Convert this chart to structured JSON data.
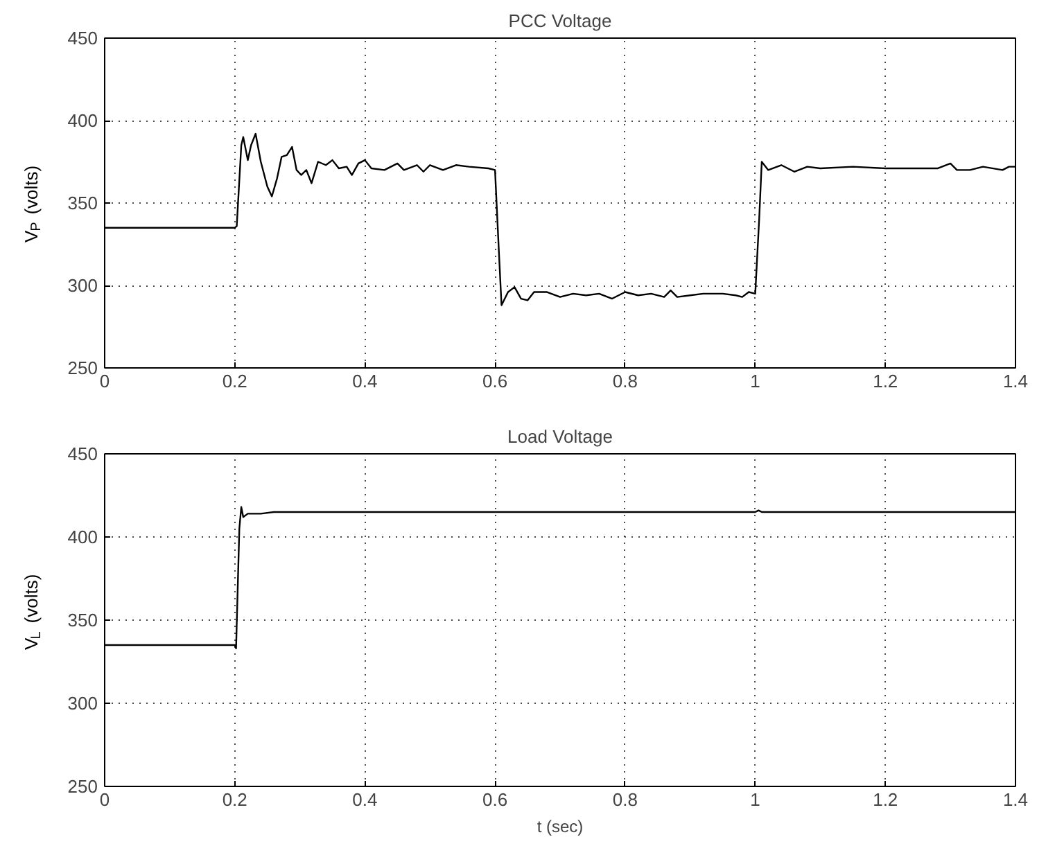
{
  "chart_data": [
    {
      "type": "line",
      "title": "PCC Voltage",
      "ylabel": "V$_{P}$ (volts)",
      "xlim": [
        0,
        1.4
      ],
      "ylim": [
        250,
        450
      ],
      "xticks": [
        0,
        0.2,
        0.4,
        0.6,
        0.8,
        1,
        1.2,
        1.4
      ],
      "yticks": [
        250,
        300,
        350,
        400,
        450
      ],
      "grid": true,
      "series": [
        {
          "color": "#000000",
          "x": [
            0,
            0.2,
            0.203,
            0.21,
            0.213,
            0.22,
            0.225,
            0.232,
            0.24,
            0.25,
            0.257,
            0.265,
            0.272,
            0.28,
            0.288,
            0.295,
            0.302,
            0.31,
            0.318,
            0.328,
            0.34,
            0.35,
            0.36,
            0.372,
            0.38,
            0.39,
            0.4,
            0.41,
            0.43,
            0.45,
            0.46,
            0.48,
            0.49,
            0.5,
            0.52,
            0.54,
            0.56,
            0.59,
            0.6,
            0.606,
            0.61,
            0.62,
            0.63,
            0.64,
            0.65,
            0.66,
            0.68,
            0.7,
            0.72,
            0.74,
            0.76,
            0.78,
            0.8,
            0.82,
            0.84,
            0.86,
            0.87,
            0.88,
            0.9,
            0.92,
            0.95,
            0.97,
            0.98,
            0.99,
            1.0,
            1.006,
            1.01,
            1.02,
            1.04,
            1.06,
            1.08,
            1.1,
            1.15,
            1.2,
            1.25,
            1.28,
            1.3,
            1.31,
            1.33,
            1.35,
            1.38,
            1.39,
            1.4
          ],
          "values": [
            335,
            335,
            336,
            385,
            390,
            376,
            385,
            392,
            375,
            360,
            354,
            365,
            378,
            379,
            384,
            370,
            367,
            370,
            362,
            375,
            373,
            376,
            371,
            372,
            367,
            374,
            376,
            371,
            370,
            374,
            370,
            373,
            369,
            373,
            370,
            373,
            372,
            371,
            370,
            320,
            288,
            296,
            299,
            292,
            291,
            296,
            296,
            293,
            295,
            294,
            295,
            292,
            296,
            294,
            295,
            293,
            297,
            293,
            294,
            295,
            295,
            294,
            293,
            296,
            295,
            340,
            375,
            370,
            373,
            369,
            372,
            371,
            372,
            371,
            371,
            371,
            374,
            370,
            370,
            372,
            370,
            372,
            372
          ]
        }
      ]
    },
    {
      "type": "line",
      "title": "Load Voltage",
      "xlabel": "t (sec)",
      "ylabel": "V$_{L}$ (volts)",
      "xlim": [
        0,
        1.4
      ],
      "ylim": [
        250,
        450
      ],
      "xticks": [
        0,
        0.2,
        0.4,
        0.6,
        0.8,
        1,
        1.2,
        1.4
      ],
      "yticks": [
        250,
        300,
        350,
        400,
        450
      ],
      "grid": true,
      "series": [
        {
          "color": "#000000",
          "x": [
            0,
            0.2,
            0.202,
            0.207,
            0.21,
            0.213,
            0.22,
            0.24,
            0.26,
            0.3,
            0.4,
            0.6,
            1.0,
            1.005,
            1.01,
            1.4
          ],
          "values": [
            335,
            335,
            333,
            405,
            418,
            412,
            414,
            414,
            415,
            415,
            415,
            415,
            415,
            416,
            415,
            415
          ]
        }
      ]
    }
  ]
}
